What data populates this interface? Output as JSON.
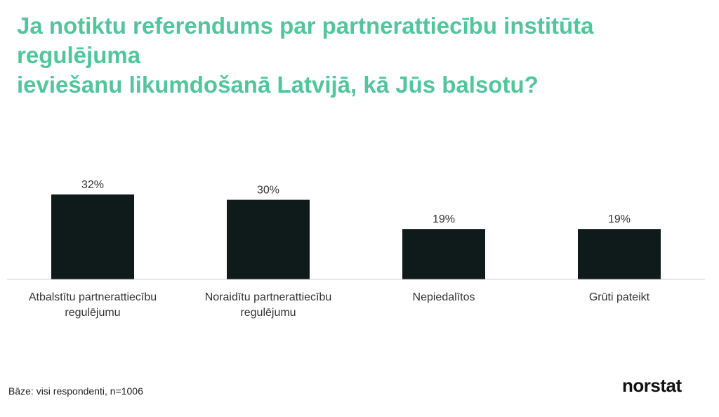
{
  "title_lines": [
    "Ja notiktu referendums par partnerattiecību institūta regulējuma",
    "ieviešanu likumdošanā Latvijā, kā Jūs balsotu?"
  ],
  "footer": {
    "base_text": "Bāze: visi respondenti, n=1006"
  },
  "brand": {
    "logo_text": "norstat"
  },
  "colors": {
    "title": "#52c59c",
    "bar": "#0f1a1a",
    "axis": "#cfcfcf",
    "label": "#333333"
  },
  "chart_data": {
    "type": "bar",
    "title": "Ja notiktu referendums par partnerattiecību institūta regulējuma ieviešanu likumdošanā Latvijā, kā Jūs balsotu?",
    "categories": [
      [
        "Atbalstītu partnerattiecību",
        "regulējumu"
      ],
      [
        "Noraidītu partnerattiecību",
        "regulējumu"
      ],
      [
        "Nepiedalītos"
      ],
      [
        "Grūti pateikt"
      ]
    ],
    "values": [
      32,
      30,
      19,
      19
    ],
    "data_labels": [
      "32%",
      "30%",
      "19%",
      "19%"
    ],
    "ylim": [
      0,
      40
    ],
    "grid": false,
    "legend": "none"
  }
}
